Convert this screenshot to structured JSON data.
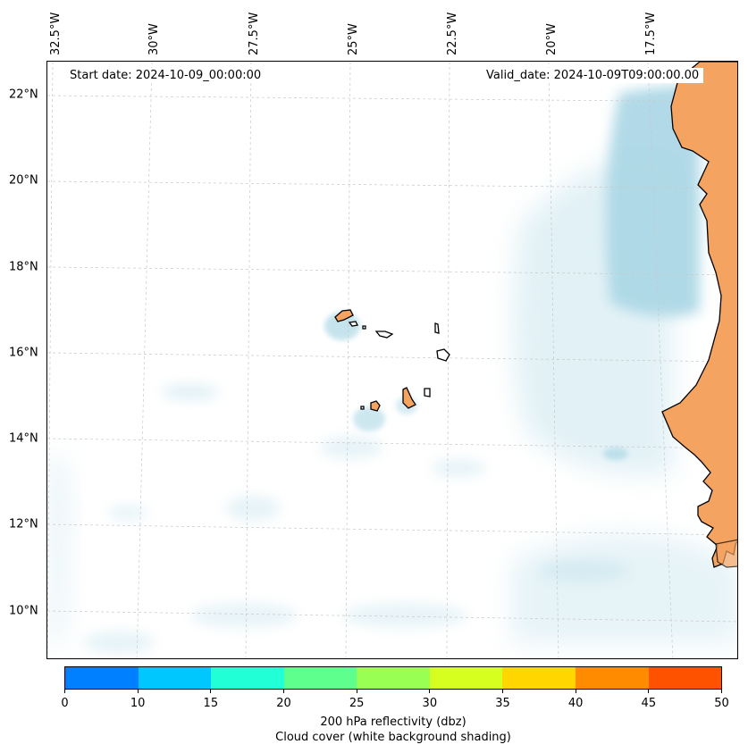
{
  "map": {
    "start_date": "Start date: 2024-10-09_00:00:00",
    "valid_date": "Valid_date: 2024-10-09T09:00:00.00",
    "lon_labels": [
      "32.5°W",
      "30°W",
      "27.5°W",
      "25°W",
      "22.5°W",
      "20°W",
      "17.5°W"
    ],
    "lat_labels": [
      "22°N",
      "20°N",
      "18°N",
      "16°N",
      "14°N",
      "12°N",
      "10°N"
    ],
    "land_color": "#f4a460",
    "cloud_color": "#add8e6"
  },
  "colorbar": {
    "ticks": [
      "0",
      "10",
      "15",
      "20",
      "25",
      "30",
      "35",
      "40",
      "45",
      "50"
    ],
    "colors": [
      "#0080ff",
      "#00c8ff",
      "#21ffd6",
      "#5eff8c",
      "#99ff52",
      "#d6ff1f",
      "#ffd600",
      "#ff8c00",
      "#ff5200"
    ],
    "label": "200 hPa reflectivity (dbz)",
    "sublabel": "Cloud cover (white background shading)"
  }
}
